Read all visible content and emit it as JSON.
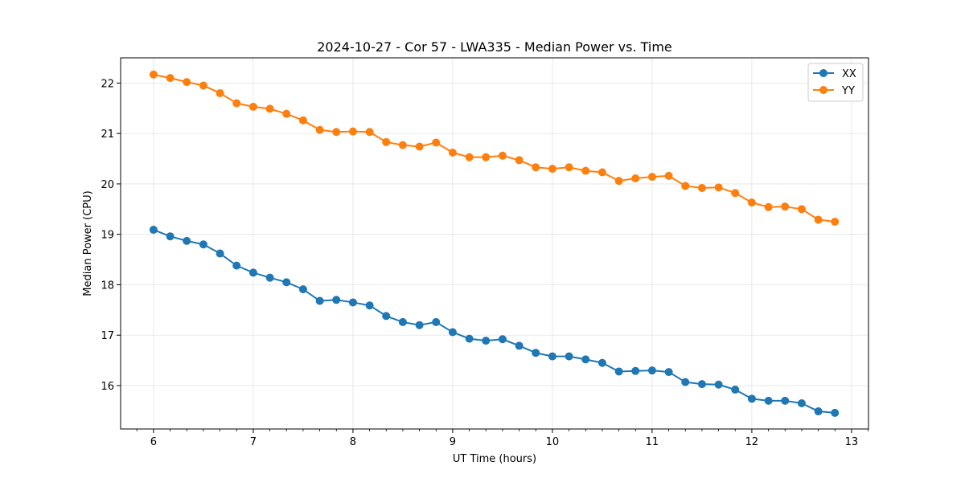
{
  "chart_data": {
    "type": "line",
    "title": "2024-10-27 - Cor 57 - LWA335 - Median Power vs. Time",
    "xlabel": "UT Time (hours)",
    "ylabel": "Median Power (CPU)",
    "xlim": [
      5.67,
      13.17
    ],
    "ylim": [
      15.14,
      22.5
    ],
    "xticks": [
      6,
      7,
      8,
      9,
      10,
      11,
      12,
      13
    ],
    "yticks": [
      16,
      17,
      18,
      19,
      20,
      21,
      22
    ],
    "grid": true,
    "legend_position": "top-right",
    "x": [
      6.0,
      6.167,
      6.333,
      6.5,
      6.667,
      6.833,
      7.0,
      7.167,
      7.333,
      7.5,
      7.667,
      7.833,
      8.0,
      8.167,
      8.333,
      8.5,
      8.667,
      8.833,
      9.0,
      9.167,
      9.333,
      9.5,
      9.667,
      9.833,
      10.0,
      10.167,
      10.333,
      10.5,
      10.667,
      10.833,
      11.0,
      11.167,
      11.333,
      11.5,
      11.667,
      11.833,
      12.0,
      12.167,
      12.333,
      12.5,
      12.667,
      12.833
    ],
    "series": [
      {
        "name": "XX",
        "color": "#1f77b4",
        "values": [
          19.09,
          18.96,
          18.87,
          18.8,
          18.62,
          18.38,
          18.24,
          18.14,
          18.05,
          17.91,
          17.68,
          17.7,
          17.65,
          17.59,
          17.38,
          17.26,
          17.2,
          17.26,
          17.06,
          16.93,
          16.89,
          16.92,
          16.79,
          16.65,
          16.58,
          16.58,
          16.52,
          16.45,
          16.28,
          16.29,
          16.3,
          16.27,
          16.07,
          16.03,
          16.02,
          15.92,
          15.74,
          15.7,
          15.7,
          15.65,
          15.49,
          15.46
        ]
      },
      {
        "name": "YY",
        "color": "#ff7f0e",
        "values": [
          22.17,
          22.1,
          22.02,
          21.95,
          21.8,
          21.6,
          21.53,
          21.49,
          21.39,
          21.26,
          21.07,
          21.03,
          21.04,
          21.03,
          20.83,
          20.77,
          20.74,
          20.82,
          20.62,
          20.53,
          20.53,
          20.56,
          20.47,
          20.33,
          20.3,
          20.33,
          20.26,
          20.23,
          20.06,
          20.11,
          20.14,
          20.16,
          19.96,
          19.92,
          19.93,
          19.82,
          19.63,
          19.54,
          19.55,
          19.5,
          19.29,
          19.25
        ]
      }
    ]
  }
}
